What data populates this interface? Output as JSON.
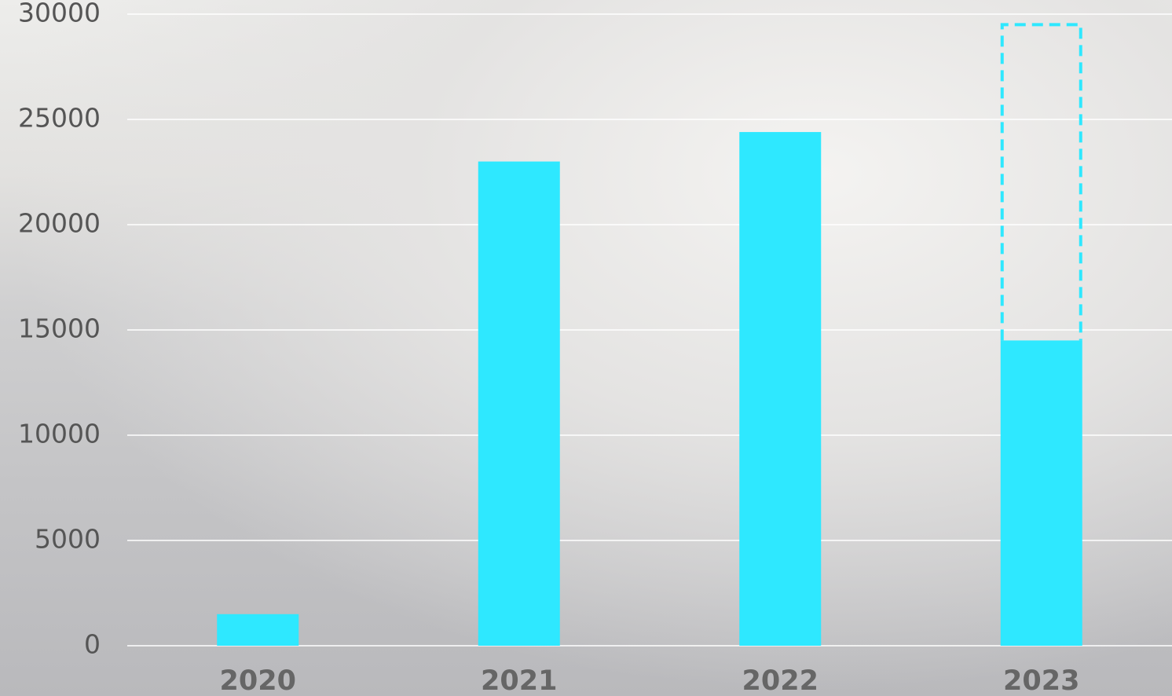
{
  "chart_data": {
    "type": "bar",
    "categories": [
      "2020",
      "2021",
      "2022",
      "2023"
    ],
    "values": [
      1500,
      23000,
      24400,
      14500
    ],
    "projected_values": [
      null,
      null,
      null,
      29500
    ],
    "color": "#2ee8ff",
    "ylim": [
      0,
      30000
    ],
    "yticks": [
      0,
      5000,
      10000,
      15000,
      20000,
      25000,
      30000
    ],
    "grid": true
  }
}
